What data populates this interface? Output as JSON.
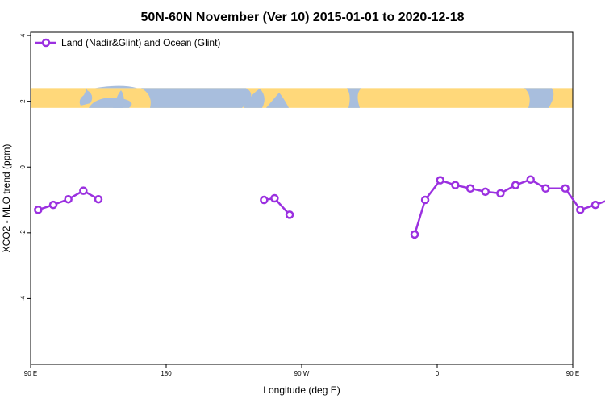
{
  "chart_data": {
    "type": "line",
    "title": "50N-60N November (Ver 10)   2015-01-01 to 2020-12-18",
    "xlabel": "Longitude (deg E)",
    "ylabel": "XCO2 - MLO trend (ppm)",
    "xlim": [
      90,
      450
    ],
    "ylim": [
      -6,
      4.1
    ],
    "x_ticks": [
      {
        "value": 90,
        "label": "90 E"
      },
      {
        "value": 180,
        "label": "180"
      },
      {
        "value": 270,
        "label": "90 W"
      },
      {
        "value": 360,
        "label": "0"
      },
      {
        "value": 450,
        "label": "90 E"
      },
      {
        "value": 540,
        "label": "180"
      }
    ],
    "y_ticks": [
      {
        "value": 4,
        "label": "4"
      },
      {
        "value": 2,
        "label": "2"
      },
      {
        "value": 0,
        "label": "0"
      },
      {
        "value": -2,
        "label": "-2"
      },
      {
        "value": -4,
        "label": "-4"
      }
    ],
    "grid": false,
    "legend_position": "top-left",
    "map_band": {
      "y_range": [
        1.8,
        2.4
      ],
      "ocean_color": "#a8bedd",
      "land_color": "#ffd87a"
    },
    "series": [
      {
        "name": "Land (Nadir&Glint) and Ocean (Glint)",
        "color": "#9b30e0",
        "segments": [
          [
            [
              95,
              -1.3
            ],
            [
              105,
              -1.15
            ],
            [
              115,
              -0.98
            ],
            [
              125,
              -0.72
            ],
            [
              135,
              -0.98
            ]
          ],
          [
            [
              245,
              -1.0
            ],
            [
              252,
              -0.95
            ],
            [
              262,
              -1.45
            ]
          ],
          [
            [
              345,
              -2.05
            ],
            [
              352,
              -1.0
            ],
            [
              362,
              -0.4
            ],
            [
              372,
              -0.55
            ],
            [
              382,
              -0.65
            ],
            [
              392,
              -0.75
            ],
            [
              402,
              -0.8
            ],
            [
              412,
              -0.55
            ],
            [
              422,
              -0.38
            ],
            [
              432,
              -0.65
            ],
            [
              445,
              -0.65
            ],
            [
              455,
              -1.3
            ],
            [
              465,
              -1.15
            ],
            [
              475,
              -0.98
            ],
            [
              485,
              -0.72
            ],
            [
              495,
              -0.98
            ]
          ]
        ]
      }
    ]
  }
}
